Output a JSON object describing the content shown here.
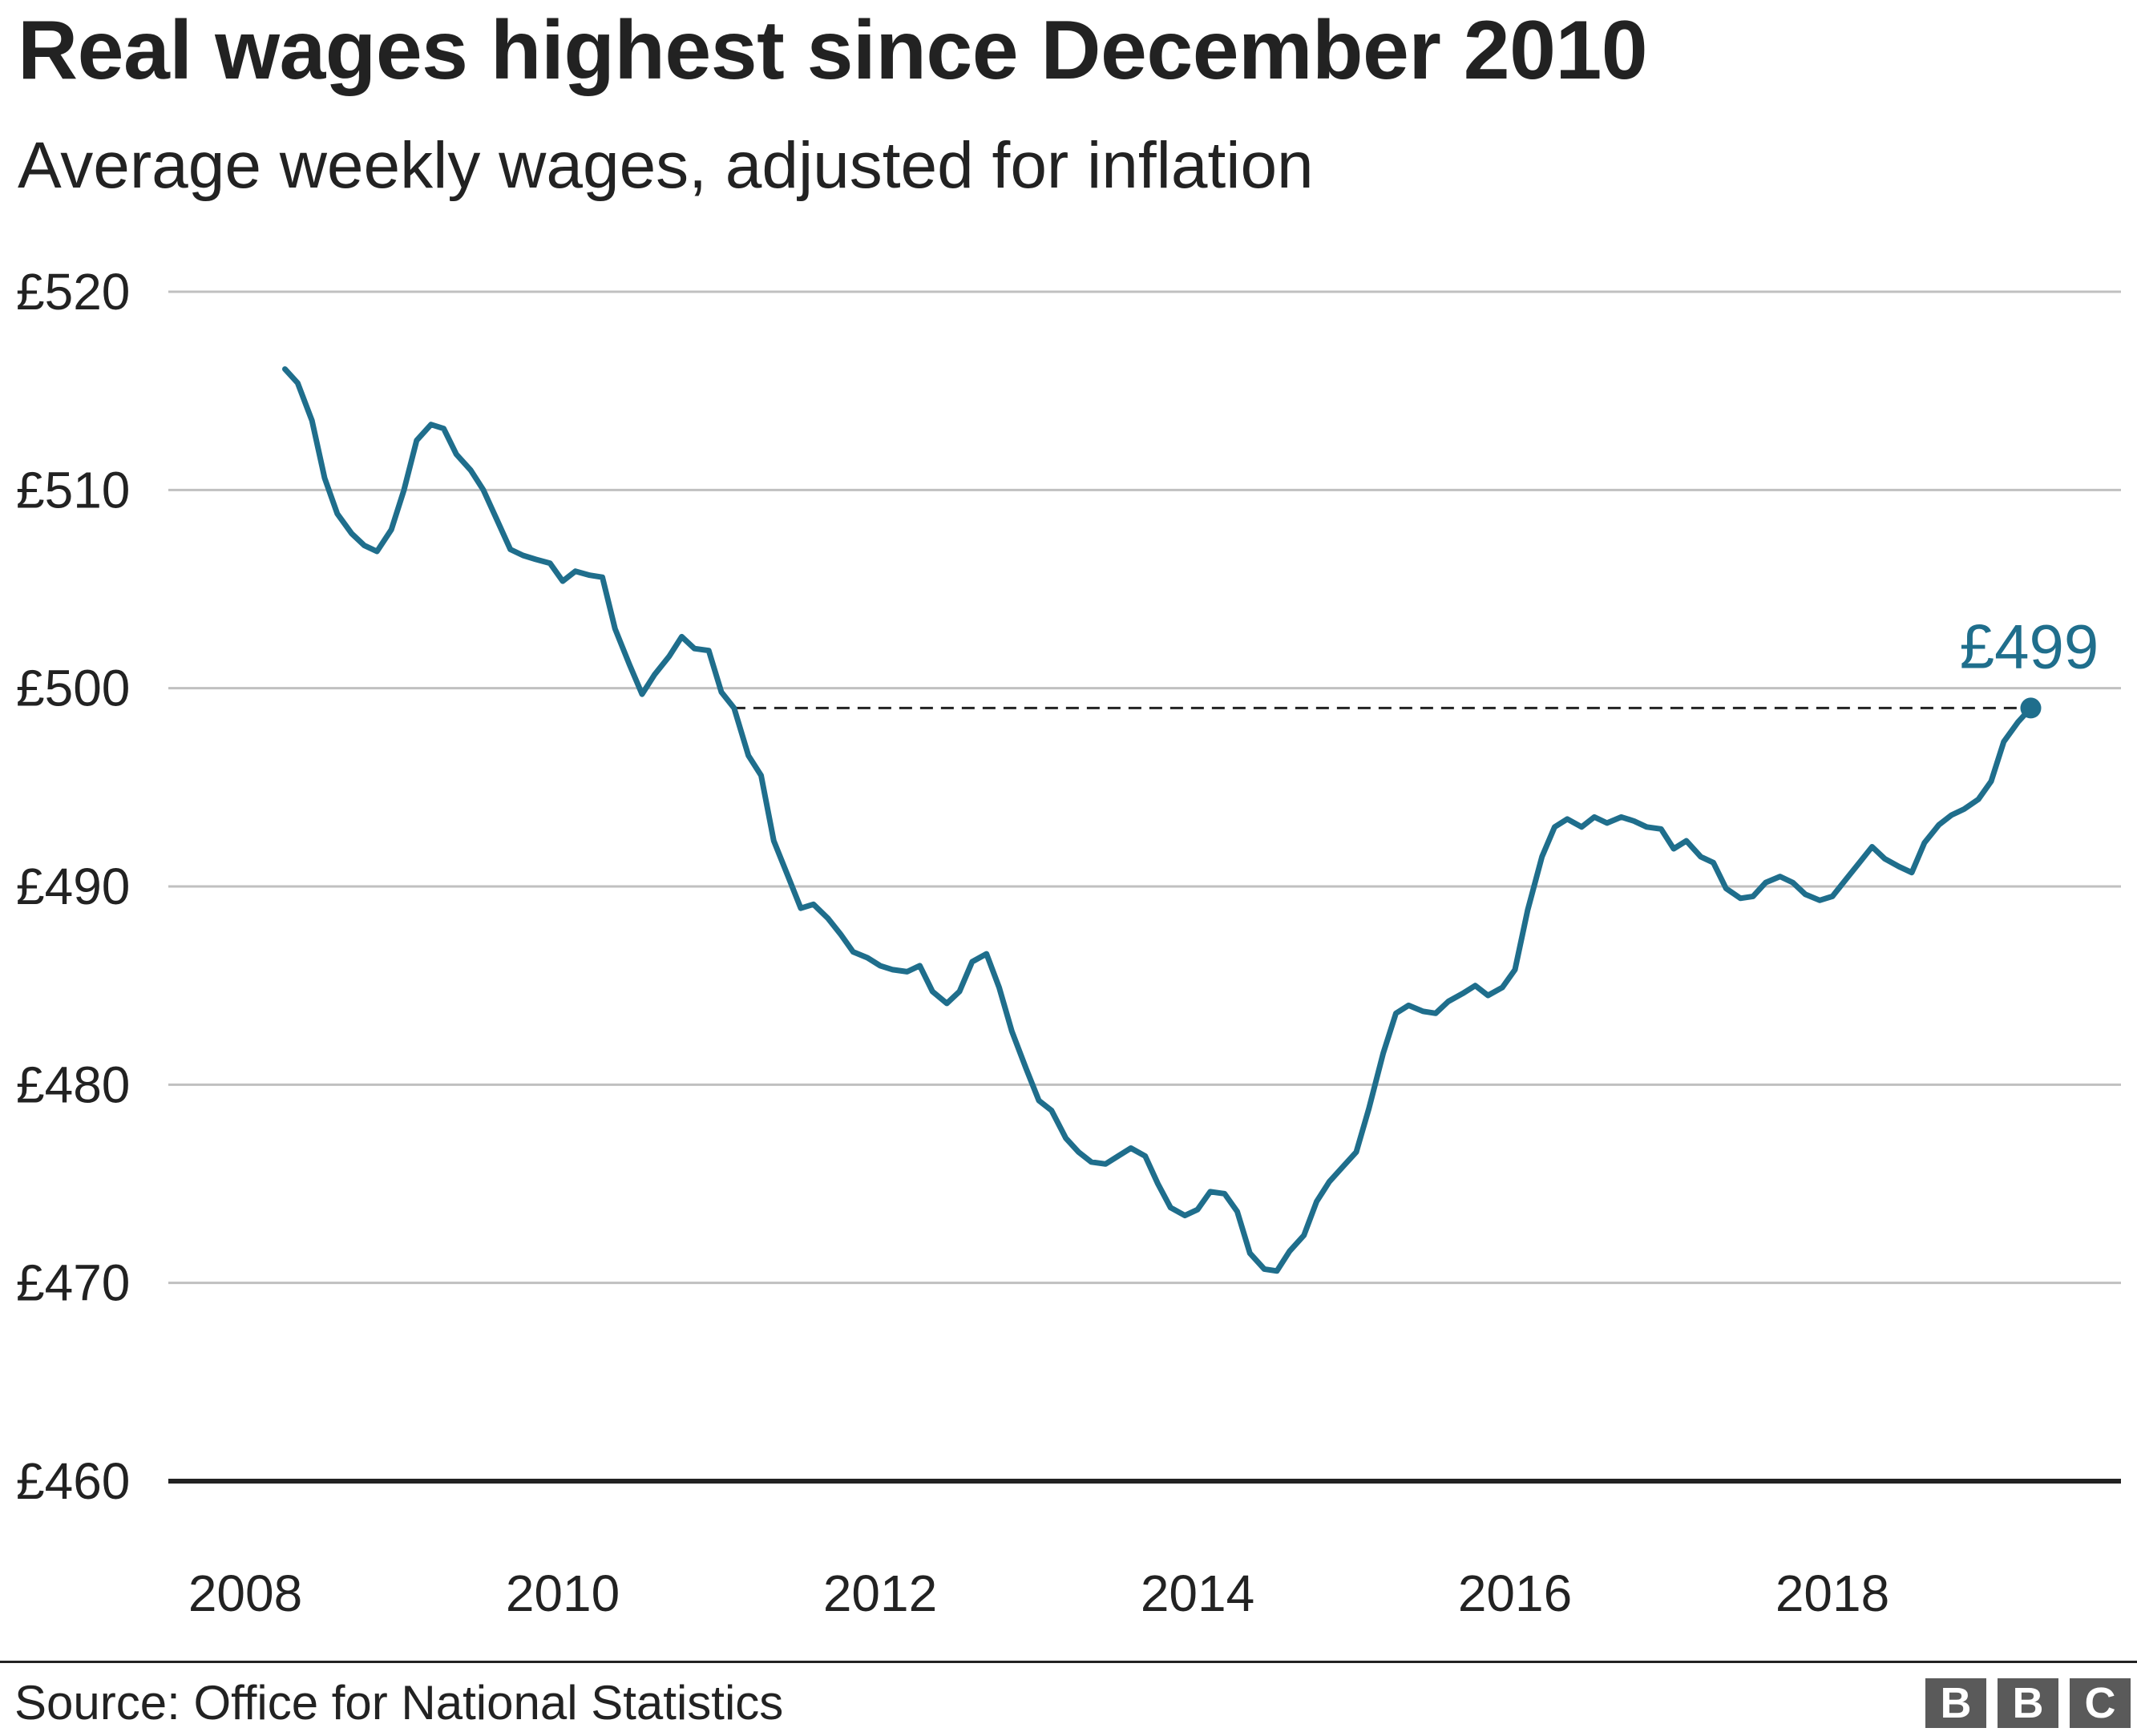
{
  "header": {
    "title": "Real wages highest since December 2010",
    "subtitle": "Average weekly wages, adjusted for inflation"
  },
  "footer": {
    "source": "Source: Office for National Statistics",
    "logo_letters": [
      "B",
      "B",
      "C"
    ]
  },
  "colors": {
    "line": "#1f6e8c",
    "grid": "#c0c0c0",
    "baseline": "#222222",
    "text": "#222222",
    "logo": "#5a5a5a"
  },
  "chart_data": {
    "type": "line",
    "title": "Real wages highest since December 2010",
    "subtitle": "Average weekly wages, adjusted for inflation",
    "xlabel": "",
    "ylabel": "",
    "xlim": [
      2007.9,
      2019.85
    ],
    "ylim": [
      460,
      520
    ],
    "grid": true,
    "y_ticks": [
      460,
      470,
      480,
      490,
      500,
      510,
      520
    ],
    "y_tick_labels": [
      "£460",
      "£470",
      "£480",
      "£490",
      "£500",
      "£510",
      "£520"
    ],
    "x_ticks": [
      2008,
      2010,
      2012,
      2014,
      2016,
      2018
    ],
    "x_tick_labels": [
      "2008",
      "2010",
      "2012",
      "2014",
      "2016",
      "2018"
    ],
    "reference_line": {
      "value": 499,
      "from_x": 2011.07,
      "to_x": 2019.25,
      "style": "dashed"
    },
    "end_label": {
      "text": "£499",
      "x": 2019.25,
      "y": 499
    },
    "series": [
      {
        "x": [
          2008.25,
          2008.33,
          2008.42,
          2008.5,
          2008.58,
          2008.67,
          2008.75,
          2008.83,
          2008.92,
          2009.0,
          2009.08,
          2009.17,
          2009.25,
          2009.33,
          2009.42,
          2009.5,
          2009.58,
          2009.67,
          2009.75,
          2009.83,
          2009.92,
          2010.0,
          2010.08,
          2010.17,
          2010.25,
          2010.33,
          2010.42,
          2010.5,
          2010.58,
          2010.67,
          2010.75,
          2010.83,
          2010.92,
          2011.0,
          2011.08,
          2011.17,
          2011.25,
          2011.33,
          2011.42,
          2011.5,
          2011.58,
          2011.67,
          2011.75,
          2011.83,
          2011.92,
          2012.0,
          2012.08,
          2012.17,
          2012.25,
          2012.33,
          2012.42,
          2012.5,
          2012.58,
          2012.67,
          2012.75,
          2012.83,
          2012.92,
          2013.0,
          2013.08,
          2013.17,
          2013.25,
          2013.33,
          2013.42,
          2013.5,
          2013.58,
          2013.67,
          2013.75,
          2013.83,
          2013.92,
          2014.0,
          2014.08,
          2014.17,
          2014.25,
          2014.33,
          2014.42,
          2014.5,
          2014.58,
          2014.67,
          2014.75,
          2014.83,
          2014.92,
          2015.0,
          2015.08,
          2015.17,
          2015.25,
          2015.33,
          2015.42,
          2015.5,
          2015.58,
          2015.67,
          2015.75,
          2015.83,
          2015.92,
          2016.0,
          2016.08,
          2016.17,
          2016.25,
          2016.33,
          2016.42,
          2016.5,
          2016.58,
          2016.67,
          2016.75,
          2016.83,
          2016.92,
          2017.0,
          2017.08,
          2017.17,
          2017.25,
          2017.33,
          2017.42,
          2017.5,
          2017.58,
          2017.67,
          2017.75,
          2017.83,
          2017.92,
          2018.0,
          2018.08,
          2018.17,
          2018.25,
          2018.33,
          2018.42,
          2018.5,
          2018.58,
          2018.67,
          2018.75,
          2018.83,
          2018.92,
          2019.0,
          2019.08,
          2019.17,
          2019.25
        ],
        "values": [
          516.1,
          515.4,
          513.5,
          510.6,
          508.8,
          507.8,
          507.2,
          506.9,
          508.0,
          510.0,
          512.5,
          513.3,
          513.1,
          511.8,
          511.0,
          510.0,
          508.6,
          507.0,
          506.7,
          506.5,
          506.3,
          505.4,
          505.9,
          505.7,
          505.6,
          503.0,
          501.2,
          499.7,
          500.7,
          501.6,
          502.6,
          502.0,
          501.9,
          499.8,
          499.0,
          496.6,
          495.6,
          492.3,
          490.5,
          488.9,
          489.1,
          488.4,
          487.6,
          486.7,
          486.4,
          486.0,
          485.8,
          485.7,
          486.0,
          484.7,
          484.1,
          484.7,
          486.2,
          486.6,
          484.9,
          482.7,
          480.8,
          479.2,
          478.7,
          477.3,
          476.6,
          476.1,
          476.0,
          476.4,
          476.8,
          476.4,
          475.0,
          473.8,
          473.4,
          473.7,
          474.6,
          474.5,
          473.6,
          471.5,
          470.7,
          470.6,
          471.6,
          472.4,
          474.1,
          475.1,
          475.9,
          476.6,
          478.8,
          481.6,
          483.6,
          484.0,
          483.7,
          483.6,
          484.2,
          484.6,
          485.0,
          484.5,
          484.9,
          485.8,
          488.8,
          491.5,
          493.0,
          493.4,
          493.0,
          493.5,
          493.2,
          493.5,
          493.3,
          493.0,
          492.9,
          491.9,
          492.3,
          491.5,
          491.2,
          489.9,
          489.4,
          489.5,
          490.2,
          490.5,
          490.2,
          489.6,
          489.3,
          489.5,
          490.3,
          491.2,
          492.0,
          491.4,
          491.0,
          490.7,
          492.2,
          493.1,
          493.6,
          493.9,
          494.4,
          495.3,
          497.3,
          498.3,
          499.0
        ]
      }
    ]
  }
}
